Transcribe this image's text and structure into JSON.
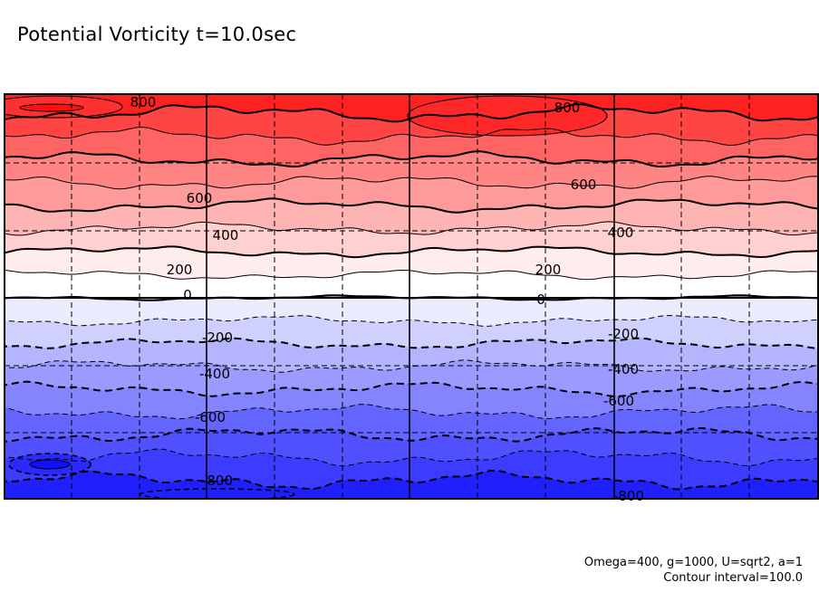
{
  "title": "Potential Vorticity t=10.0sec",
  "footer": {
    "params": "Omega=400, g=1000, U=sqrt2, a=1",
    "contour": "Contour interval=100.0"
  },
  "chart_data": {
    "type": "heatmap",
    "title": "Potential Vorticity t=10.0sec",
    "variable": "Potential Vorticity",
    "time": "t=10.0sec",
    "contour_interval": 100.0,
    "parameters": {
      "Omega": 400,
      "g": 1000,
      "U": "sqrt2",
      "a": 1
    },
    "levels": [
      -800,
      -700,
      -600,
      -500,
      -400,
      -300,
      -200,
      -100,
      0,
      100,
      200,
      300,
      400,
      500,
      600,
      700,
      800
    ],
    "band_colors": [
      {
        "range": [
          800,
          900
        ],
        "color": "#ff2020"
      },
      {
        "range": [
          700,
          800
        ],
        "color": "#ff4444"
      },
      {
        "range": [
          600,
          700
        ],
        "color": "#ff6464"
      },
      {
        "range": [
          500,
          600
        ],
        "color": "#ff8484"
      },
      {
        "range": [
          400,
          500
        ],
        "color": "#ff9a9a"
      },
      {
        "range": [
          300,
          400
        ],
        "color": "#ffb4b4"
      },
      {
        "range": [
          200,
          300
        ],
        "color": "#ffd0d0"
      },
      {
        "range": [
          100,
          200
        ],
        "color": "#ffecec"
      },
      {
        "range": [
          0,
          100
        ],
        "color": "#ffffff"
      },
      {
        "range": [
          -100,
          0
        ],
        "color": "#ececff"
      },
      {
        "range": [
          -200,
          -100
        ],
        "color": "#d0d0ff"
      },
      {
        "range": [
          -300,
          -200
        ],
        "color": "#b4b4ff"
      },
      {
        "range": [
          -400,
          -300
        ],
        "color": "#9a9aff"
      },
      {
        "range": [
          -500,
          -400
        ],
        "color": "#8484ff"
      },
      {
        "range": [
          -600,
          -500
        ],
        "color": "#6464ff"
      },
      {
        "range": [
          -700,
          -600
        ],
        "color": "#5050ff"
      },
      {
        "range": [
          -800,
          -700
        ],
        "color": "#3c3cff"
      },
      {
        "range": [
          -900,
          -800
        ],
        "color": "#2020ff"
      }
    ],
    "contour_labels": [
      {
        "text": "800",
        "level": 800
      },
      {
        "text": "800",
        "level": 800
      },
      {
        "text": "600",
        "level": 600
      },
      {
        "text": "600",
        "level": 600
      },
      {
        "text": "400",
        "level": 400
      },
      {
        "text": "400",
        "level": 400
      },
      {
        "text": "200",
        "level": 200
      },
      {
        "text": "200",
        "level": 200
      },
      {
        "text": "0",
        "level": 0
      },
      {
        "text": "0",
        "level": 0
      },
      {
        "text": "-200",
        "level": -200
      },
      {
        "text": "-200",
        "level": -200
      },
      {
        "text": "-400",
        "level": -400
      },
      {
        "text": "-400",
        "level": -400
      },
      {
        "text": "-600",
        "level": -600
      },
      {
        "text": "-600",
        "level": -600
      },
      {
        "text": "-800",
        "level": -800
      },
      {
        "text": "-800",
        "level": -800
      }
    ],
    "grid": true,
    "xlabel": "",
    "ylabel": ""
  }
}
